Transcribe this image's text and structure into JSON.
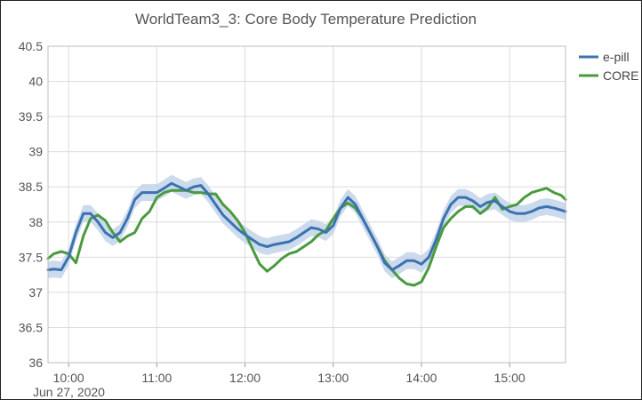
{
  "chart_data": {
    "type": "line",
    "title": "WorldTeam3_3: Core Body Temperature Prediction",
    "xlabel": "",
    "ylabel": "",
    "date_label": "Jun 27, 2020",
    "x_ticks": [
      "10:00",
      "11:00",
      "12:00",
      "13:00",
      "14:00",
      "15:00"
    ],
    "y_ticks": [
      "36",
      "36.5",
      "37",
      "37.5",
      "38",
      "38.5",
      "39",
      "39.5",
      "40",
      "40.5"
    ],
    "xlim": [
      "09:46",
      "15:38"
    ],
    "ylim": [
      36,
      40.5
    ],
    "grid": true,
    "legend_position": "top-right",
    "colors": {
      "e-pill": "#3b72b0",
      "CORE": "#4a9a3f",
      "band": "#c3d3ea"
    },
    "series": [
      {
        "name": "e-pill",
        "x": [
          "09:46",
          "09:50",
          "09:55",
          "10:00",
          "10:05",
          "10:10",
          "10:15",
          "10:20",
          "10:25",
          "10:30",
          "10:35",
          "10:40",
          "10:45",
          "10:50",
          "10:55",
          "11:00",
          "11:05",
          "11:10",
          "11:15",
          "11:20",
          "11:25",
          "11:30",
          "11:35",
          "11:40",
          "11:45",
          "11:50",
          "11:55",
          "12:00",
          "12:05",
          "12:10",
          "12:15",
          "12:20",
          "12:25",
          "12:30",
          "12:35",
          "12:40",
          "12:45",
          "12:50",
          "12:55",
          "13:00",
          "13:05",
          "13:10",
          "13:15",
          "13:20",
          "13:25",
          "13:30",
          "13:35",
          "13:40",
          "13:45",
          "13:50",
          "13:55",
          "14:00",
          "14:05",
          "14:10",
          "14:15",
          "14:20",
          "14:25",
          "14:30",
          "14:35",
          "14:40",
          "14:45",
          "14:50",
          "14:55",
          "15:00",
          "15:05",
          "15:10",
          "15:15",
          "15:20",
          "15:25",
          "15:30",
          "15:35",
          "15:38"
        ],
        "y": [
          37.32,
          37.33,
          37.32,
          37.5,
          37.85,
          38.12,
          38.12,
          38.0,
          37.85,
          37.78,
          37.85,
          38.05,
          38.32,
          38.42,
          38.42,
          38.42,
          38.48,
          38.55,
          38.5,
          38.45,
          38.5,
          38.52,
          38.4,
          38.25,
          38.1,
          38.0,
          37.9,
          37.82,
          37.75,
          37.68,
          37.65,
          37.68,
          37.7,
          37.72,
          37.78,
          37.85,
          37.92,
          37.9,
          37.85,
          37.95,
          38.2,
          38.35,
          38.25,
          38.05,
          37.85,
          37.65,
          37.42,
          37.32,
          37.38,
          37.45,
          37.45,
          37.4,
          37.5,
          37.75,
          38.05,
          38.25,
          38.35,
          38.35,
          38.3,
          38.22,
          38.28,
          38.3,
          38.22,
          38.15,
          38.12,
          38.12,
          38.15,
          38.2,
          38.22,
          38.2,
          38.17,
          38.15
        ],
        "band": 0.12
      },
      {
        "name": "CORE",
        "x": [
          "09:46",
          "09:50",
          "09:55",
          "10:00",
          "10:05",
          "10:10",
          "10:15",
          "10:20",
          "10:25",
          "10:30",
          "10:35",
          "10:40",
          "10:45",
          "10:50",
          "10:55",
          "11:00",
          "11:05",
          "11:10",
          "11:15",
          "11:20",
          "11:25",
          "11:30",
          "11:35",
          "11:40",
          "11:45",
          "11:50",
          "11:55",
          "12:00",
          "12:05",
          "12:10",
          "12:15",
          "12:20",
          "12:25",
          "12:30",
          "12:35",
          "12:40",
          "12:45",
          "12:50",
          "12:55",
          "13:00",
          "13:05",
          "13:10",
          "13:15",
          "13:20",
          "13:25",
          "13:30",
          "13:35",
          "13:40",
          "13:45",
          "13:50",
          "13:55",
          "14:00",
          "14:05",
          "14:10",
          "14:15",
          "14:20",
          "14:25",
          "14:30",
          "14:35",
          "14:40",
          "14:45",
          "14:50",
          "14:55",
          "15:00",
          "15:05",
          "15:10",
          "15:15",
          "15:20",
          "15:25",
          "15:30",
          "15:35",
          "15:38"
        ],
        "y": [
          37.48,
          37.55,
          37.58,
          37.55,
          37.42,
          37.8,
          38.05,
          38.1,
          38.02,
          37.85,
          37.72,
          37.8,
          37.85,
          38.05,
          38.15,
          38.35,
          38.42,
          38.45,
          38.45,
          38.45,
          38.42,
          38.42,
          38.4,
          38.4,
          38.25,
          38.15,
          38.02,
          37.85,
          37.62,
          37.4,
          37.3,
          37.38,
          37.48,
          37.55,
          37.58,
          37.65,
          37.72,
          37.82,
          37.88,
          38.05,
          38.2,
          38.27,
          38.2,
          38.05,
          37.85,
          37.65,
          37.45,
          37.32,
          37.2,
          37.12,
          37.1,
          37.15,
          37.35,
          37.65,
          37.92,
          38.05,
          38.15,
          38.22,
          38.22,
          38.12,
          38.2,
          38.35,
          38.18,
          38.22,
          38.25,
          38.35,
          38.42,
          38.45,
          38.48,
          38.42,
          38.38,
          38.32
        ]
      }
    ]
  }
}
